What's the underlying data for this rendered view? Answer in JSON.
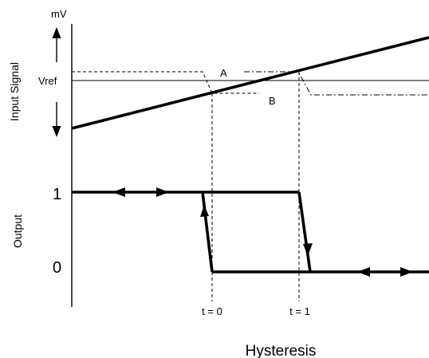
{
  "diagram": {
    "y_unit": "mV",
    "y_axis_label_top": "Input Signal",
    "y_axis_label_bottom": "Output",
    "vref_label": "Vref",
    "threshold_a_label": "A",
    "threshold_b_label": "B",
    "output_high_label": "1",
    "output_low_label": "0",
    "t0_label": "t = 0",
    "t1_label": "t = 1",
    "caption": "Hysteresis",
    "line_color": "#000000",
    "background_color": "#ffffff"
  }
}
